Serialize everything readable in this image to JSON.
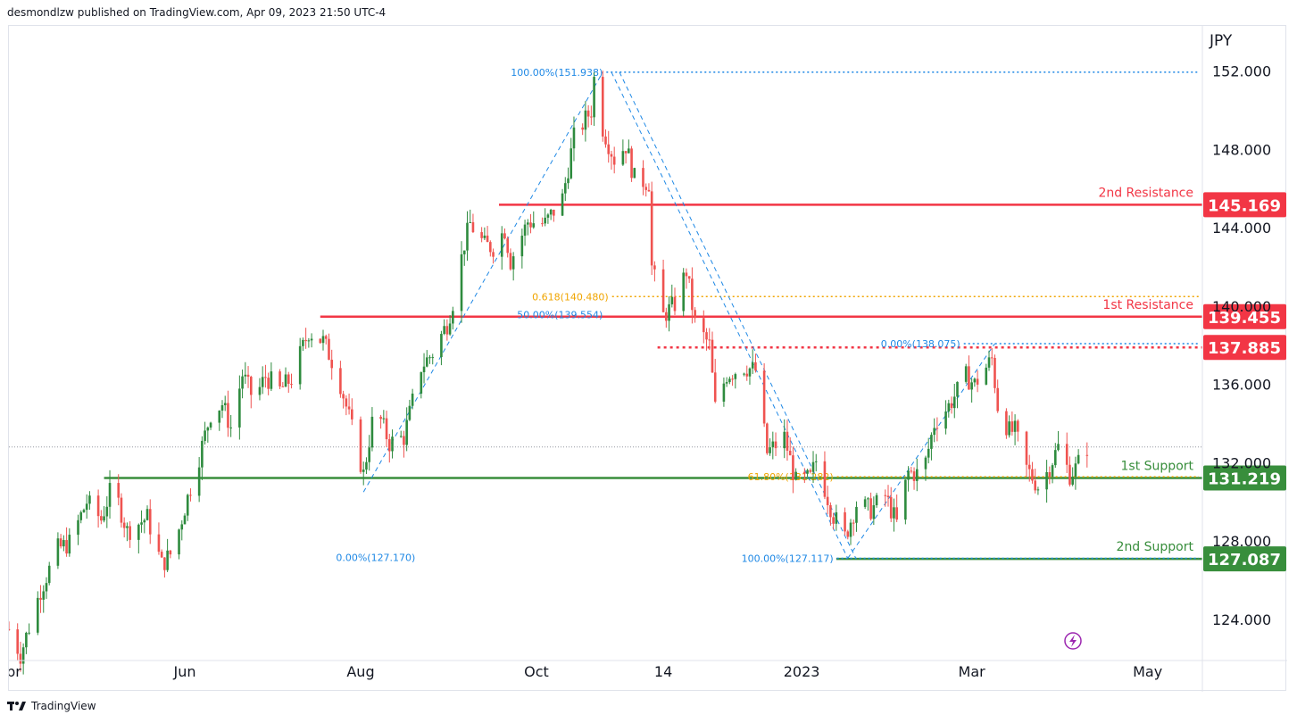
{
  "header": {
    "publisher": "desmondlzw published on TradingView.com, Apr 09, 2023 21:50 UTC-4"
  },
  "footer": {
    "brand": "TradingView",
    "logo_icon": "tradingview-logo-icon"
  },
  "chart_data": {
    "type": "candlestick",
    "currency_label": "JPY",
    "y_ticks": [
      "152.000",
      "148.000",
      "144.000",
      "140.000",
      "136.000",
      "132.000",
      "128.000",
      "124.000"
    ],
    "y_tick_values": [
      152,
      148,
      144,
      140,
      136,
      132,
      128,
      124
    ],
    "x_ticks": [
      "Apr",
      "Jun",
      "Aug",
      "Oct",
      "14",
      "2023",
      "Mar",
      "May"
    ],
    "x_tick_dates": [
      "2022-04-01",
      "2022-06-01",
      "2022-08-01",
      "2022-10-01",
      "2022-11-14",
      "2023-01-01",
      "2023-03-01",
      "2023-05-01"
    ],
    "date_range": [
      "2022-04-01",
      "2023-05-20"
    ],
    "price_range": [
      121.9,
      154.3
    ],
    "last_price": 132.8,
    "colors": {
      "up": "#26a69a",
      "up_body": "#2e8b3e",
      "down": "#ef5350",
      "resistance": "#e53935",
      "support": "#388e3c",
      "fib": "#1e88e5",
      "fib_gold": "#f0a500",
      "text": "#131722",
      "grid": "#f0f3fa"
    },
    "levels": [
      {
        "name": "2nd Resistance",
        "value": 145.169,
        "label": "145.169",
        "color": "#f23645",
        "start_date": "2022-09-18",
        "style": "solid"
      },
      {
        "name": "1st Resistance",
        "value": 139.455,
        "label": "139.455",
        "color": "#f23645",
        "start_date": "2022-07-18",
        "style": "solid"
      },
      {
        "name": "",
        "value": 137.885,
        "label": "137.885",
        "color": "#f23645",
        "start_date": "2022-11-12",
        "style": "dotted"
      },
      {
        "name": "1st Support",
        "value": 131.219,
        "label": "131.219",
        "color": "#388e3c",
        "start_date": "2022-05-04",
        "style": "solid"
      },
      {
        "name": "2nd Support",
        "value": 127.087,
        "label": "127.087",
        "color": "#388e3c",
        "start_date": "2023-01-13",
        "style": "solid"
      }
    ],
    "fib_labels": [
      {
        "text": "100.00%(151.938)",
        "value": 151.938,
        "date": "2022-10-24",
        "color": "#1e88e5",
        "line_end": "edge"
      },
      {
        "text": "0.618(140.480)",
        "value": 140.48,
        "date": "2022-10-26",
        "color": "#f0a500",
        "line_end": "edge"
      },
      {
        "text": "50.00%(139.554)",
        "value": 139.554,
        "date": "2022-10-24",
        "color": "#1e88e5",
        "line_end": "none"
      },
      {
        "text": "0.00%(138.075)",
        "value": 138.075,
        "date": "2023-02-25",
        "color": "#1e88e5",
        "line_end": "edge"
      },
      {
        "text": "61.80%(131.282)",
        "value": 131.282,
        "date": "2023-01-12",
        "color": "#f0a500",
        "line_end": "edge"
      },
      {
        "text": "0.00%(127.170)",
        "value": 127.17,
        "date": "2022-08-20",
        "color": "#1e88e5",
        "line_end": "none"
      },
      {
        "text": "100.00%(127.117)",
        "value": 127.117,
        "date": "2023-01-12",
        "color": "#1e88e5",
        "line_end": "edge"
      }
    ],
    "trend_lines": [
      {
        "from": [
          "2022-08-02",
          130.5
        ],
        "to": [
          "2022-10-24",
          151.94
        ]
      },
      {
        "from": [
          "2022-10-27",
          151.94
        ],
        "to": [
          "2023-01-17",
          127.12
        ]
      },
      {
        "from": [
          "2023-01-17",
          127.12
        ],
        "to": [
          "2023-03-09",
          138.08
        ]
      }
    ],
    "path": [
      [
        "2022-04-01",
        123.5
      ],
      [
        "2022-04-05",
        122.2
      ],
      [
        "2022-04-12",
        125.5
      ],
      [
        "2022-04-18",
        127.6
      ],
      [
        "2022-04-22",
        127.9
      ],
      [
        "2022-04-28",
        130.0
      ],
      [
        "2022-05-03",
        129.1
      ],
      [
        "2022-05-07",
        130.9
      ],
      [
        "2022-05-12",
        128.5
      ],
      [
        "2022-05-19",
        129.2
      ],
      [
        "2022-05-24",
        126.8
      ],
      [
        "2022-05-28",
        127.5
      ],
      [
        "2022-06-01",
        129.7
      ],
      [
        "2022-06-06",
        132.3
      ],
      [
        "2022-06-10",
        134.5
      ],
      [
        "2022-06-14",
        135.0
      ],
      [
        "2022-06-17",
        133.8
      ],
      [
        "2022-06-21",
        136.5
      ],
      [
        "2022-06-25",
        135.2
      ],
      [
        "2022-06-29",
        136.4
      ],
      [
        "2022-07-04",
        135.7
      ],
      [
        "2022-07-08",
        136.3
      ],
      [
        "2022-07-14",
        138.7
      ],
      [
        "2022-07-19",
        138.2
      ],
      [
        "2022-07-24",
        136.6
      ],
      [
        "2022-07-28",
        134.3
      ],
      [
        "2022-08-02",
        131.4
      ],
      [
        "2022-08-06",
        134.9
      ],
      [
        "2022-08-11",
        133.0
      ],
      [
        "2022-08-16",
        133.3
      ],
      [
        "2022-08-22",
        136.9
      ],
      [
        "2022-08-26",
        137.6
      ],
      [
        "2022-08-31",
        139.1
      ],
      [
        "2022-09-02",
        140.2
      ],
      [
        "2022-09-06",
        143.2
      ],
      [
        "2022-09-08",
        144.2
      ],
      [
        "2022-09-13",
        143.1
      ],
      [
        "2022-09-16",
        143.0
      ],
      [
        "2022-09-20",
        143.9
      ],
      [
        "2022-09-22",
        142.3
      ],
      [
        "2022-09-28",
        144.3
      ],
      [
        "2022-10-04",
        144.2
      ],
      [
        "2022-10-10",
        145.5
      ],
      [
        "2022-10-14",
        148.6
      ],
      [
        "2022-10-20",
        150.0
      ],
      [
        "2022-10-21",
        151.6
      ],
      [
        "2022-10-24",
        149.1
      ],
      [
        "2022-10-28",
        147.5
      ],
      [
        "2022-11-01",
        148.2
      ],
      [
        "2022-11-04",
        146.5
      ],
      [
        "2022-11-09",
        146.3
      ],
      [
        "2022-11-10",
        142.0
      ],
      [
        "2022-11-14",
        139.5
      ],
      [
        "2022-11-18",
        140.1
      ],
      [
        "2022-11-22",
        141.8
      ],
      [
        "2022-11-25",
        139.1
      ],
      [
        "2022-11-30",
        138.0
      ],
      [
        "2022-12-02",
        134.8
      ],
      [
        "2022-12-06",
        136.5
      ],
      [
        "2022-12-12",
        136.9
      ],
      [
        "2022-12-16",
        136.7
      ],
      [
        "2022-12-20",
        132.5
      ],
      [
        "2022-12-26",
        133.3
      ],
      [
        "2022-12-30",
        131.0
      ],
      [
        "2023-01-04",
        131.2
      ],
      [
        "2023-01-06",
        132.1
      ],
      [
        "2023-01-12",
        129.3
      ],
      [
        "2023-01-16",
        128.2
      ],
      [
        "2023-01-20",
        129.9
      ],
      [
        "2023-01-25",
        129.6
      ],
      [
        "2023-01-30",
        130.3
      ],
      [
        "2023-02-03",
        128.9
      ],
      [
        "2023-02-07",
        131.5
      ],
      [
        "2023-02-12",
        131.4
      ],
      [
        "2023-02-16",
        134.0
      ],
      [
        "2023-02-21",
        134.9
      ],
      [
        "2023-02-27",
        136.4
      ],
      [
        "2023-03-02",
        136.0
      ],
      [
        "2023-03-08",
        137.3
      ],
      [
        "2023-03-10",
        134.9
      ],
      [
        "2023-03-14",
        133.6
      ],
      [
        "2023-03-16",
        133.6
      ],
      [
        "2023-03-20",
        131.7
      ],
      [
        "2023-03-24",
        130.8
      ],
      [
        "2023-03-27",
        131.5
      ],
      [
        "2023-03-31",
        132.8
      ],
      [
        "2023-04-04",
        131.4
      ],
      [
        "2023-04-06",
        131.7
      ],
      [
        "2023-04-10",
        132.8
      ]
    ]
  }
}
